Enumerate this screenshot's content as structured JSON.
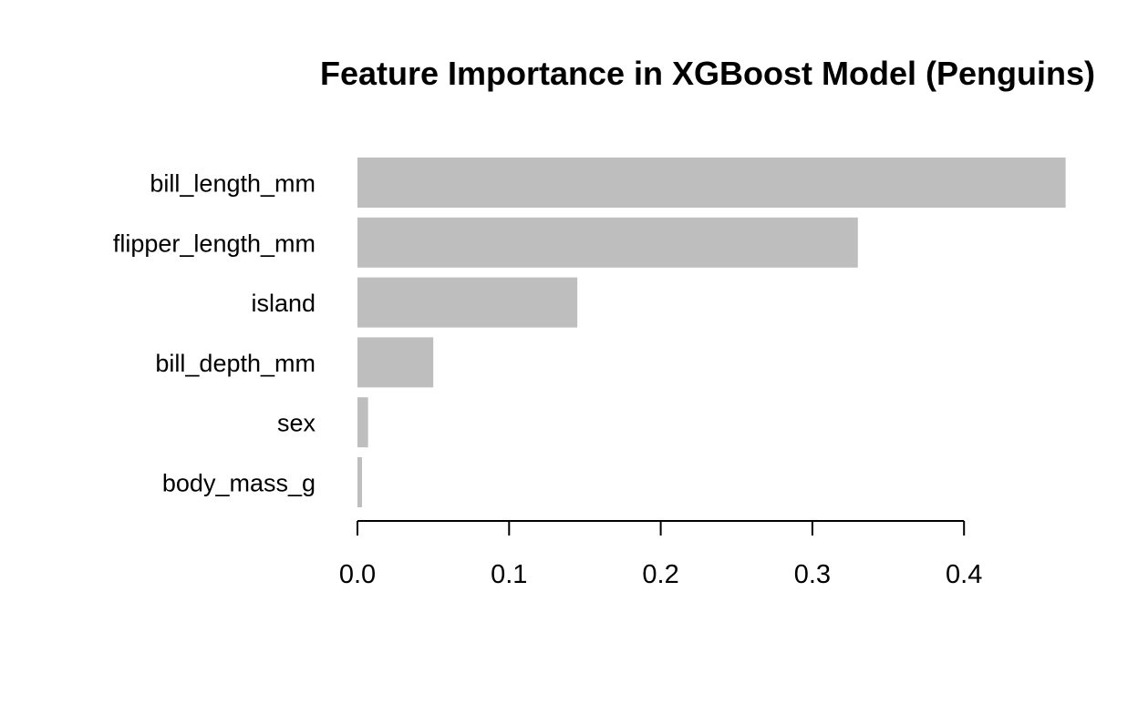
{
  "chart_data": {
    "type": "bar",
    "orientation": "horizontal",
    "title": "Feature Importance in XGBoost Model (Penguins)",
    "xlabel": "",
    "ylabel": "",
    "categories": [
      "bill_length_mm",
      "flipper_length_mm",
      "island",
      "bill_depth_mm",
      "sex",
      "body_mass_g"
    ],
    "values": [
      0.467,
      0.33,
      0.145,
      0.05,
      0.007,
      0.003
    ],
    "xlim": [
      0,
      0.47
    ],
    "xticks": [
      0.0,
      0.1,
      0.2,
      0.3,
      0.4
    ],
    "xtick_labels": [
      "0.0",
      "0.1",
      "0.2",
      "0.3",
      "0.4"
    ],
    "grid": false,
    "bar_color": "#bebebe"
  }
}
